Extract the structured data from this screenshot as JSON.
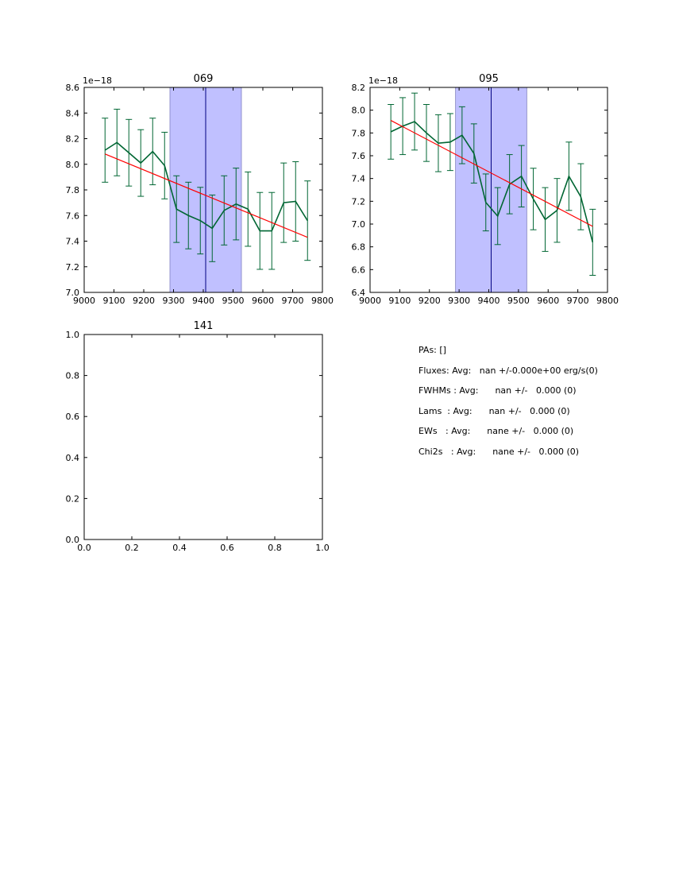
{
  "chart_data": [
    {
      "type": "line",
      "title": "069",
      "xlim": [
        9000,
        9800
      ],
      "ylim": [
        7.0,
        8.6
      ],
      "xticks": [
        9000,
        9100,
        9200,
        9300,
        9400,
        9500,
        9600,
        9700,
        9800
      ],
      "yticks": [
        7.0,
        7.2,
        7.4,
        7.6,
        7.8,
        8.0,
        8.2,
        8.4,
        8.6
      ],
      "ytick_labels": [
        "7.0",
        "7.2",
        "7.4",
        "7.6",
        "7.8",
        "8.0",
        "8.2",
        "8.4",
        "8.6"
      ],
      "offset_label": "1e−18",
      "shaded_span": [
        9288,
        9528
      ],
      "vline": 9408,
      "series": [
        {
          "name": "spectrum",
          "color": "#006633",
          "x": [
            9070,
            9110,
            9150,
            9190,
            9230,
            9270,
            9310,
            9350,
            9390,
            9430,
            9470,
            9510,
            9550,
            9590,
            9630,
            9670,
            9710,
            9750
          ],
          "y": [
            8.11,
            8.17,
            8.09,
            8.01,
            8.1,
            7.99,
            7.65,
            7.6,
            7.56,
            7.5,
            7.64,
            7.69,
            7.65,
            7.48,
            7.48,
            7.7,
            7.71,
            7.56
          ],
          "err": [
            0.25,
            0.26,
            0.26,
            0.26,
            0.26,
            0.26,
            0.26,
            0.26,
            0.26,
            0.26,
            0.27,
            0.28,
            0.29,
            0.3,
            0.3,
            0.31,
            0.31,
            0.31
          ]
        },
        {
          "name": "linear-fit",
          "color": "#ff0000",
          "x": [
            9070,
            9750
          ],
          "y": [
            8.08,
            7.43
          ]
        }
      ]
    },
    {
      "type": "line",
      "title": "095",
      "xlim": [
        9000,
        9800
      ],
      "ylim": [
        6.4,
        8.2
      ],
      "xticks": [
        9000,
        9100,
        9200,
        9300,
        9400,
        9500,
        9600,
        9700,
        9800
      ],
      "yticks": [
        6.4,
        6.6,
        6.8,
        7.0,
        7.2,
        7.4,
        7.6,
        7.8,
        8.0,
        8.2
      ],
      "ytick_labels": [
        "6.4",
        "6.6",
        "6.8",
        "7.0",
        "7.2",
        "7.4",
        "7.6",
        "7.8",
        "8.0",
        "8.2"
      ],
      "offset_label": "1e−18",
      "shaded_span": [
        9288,
        9528
      ],
      "vline": 9408,
      "series": [
        {
          "name": "spectrum",
          "color": "#006633",
          "x": [
            9070,
            9110,
            9150,
            9190,
            9230,
            9270,
            9310,
            9350,
            9390,
            9430,
            9470,
            9510,
            9550,
            9590,
            9630,
            9670,
            9710,
            9750
          ],
          "y": [
            7.81,
            7.86,
            7.9,
            7.8,
            7.71,
            7.72,
            7.78,
            7.62,
            7.19,
            7.07,
            7.35,
            7.42,
            7.22,
            7.04,
            7.12,
            7.42,
            7.24,
            6.84
          ],
          "err": [
            0.24,
            0.25,
            0.25,
            0.25,
            0.25,
            0.25,
            0.25,
            0.26,
            0.25,
            0.25,
            0.26,
            0.27,
            0.27,
            0.28,
            0.28,
            0.3,
            0.29,
            0.29
          ]
        },
        {
          "name": "linear-fit",
          "color": "#ff0000",
          "x": [
            9070,
            9750
          ],
          "y": [
            7.91,
            6.98
          ]
        }
      ]
    },
    {
      "type": "line",
      "title": "141",
      "xlim": [
        0.0,
        1.0
      ],
      "ylim": [
        0.0,
        1.0
      ],
      "xticks": [
        0.0,
        0.2,
        0.4,
        0.6,
        0.8,
        1.0
      ],
      "xtick_labels": [
        "0.0",
        "0.2",
        "0.4",
        "0.6",
        "0.8",
        "1.0"
      ],
      "yticks": [
        0.0,
        0.2,
        0.4,
        0.6,
        0.8,
        1.0
      ],
      "ytick_labels": [
        "0.0",
        "0.2",
        "0.4",
        "0.6",
        "0.8",
        "1.0"
      ],
      "series": []
    }
  ],
  "stats": [
    "PAs: []",
    "Fluxes: Avg:   nan +/-0.000e+00 erg/s(0)",
    "FWHMs : Avg:      nan +/-   0.000 (0)",
    "Lams  : Avg:      nan +/-   0.000 (0)",
    "EWs   : Avg:      nane +/-   0.000 (0)",
    "Chi2s   : Avg:      nane +/-   0.000 (0)"
  ],
  "colors": {
    "span_fill": "#c0c0ff",
    "span_edge": "#8080c0",
    "vline": "#000080",
    "axes": "#000000"
  }
}
